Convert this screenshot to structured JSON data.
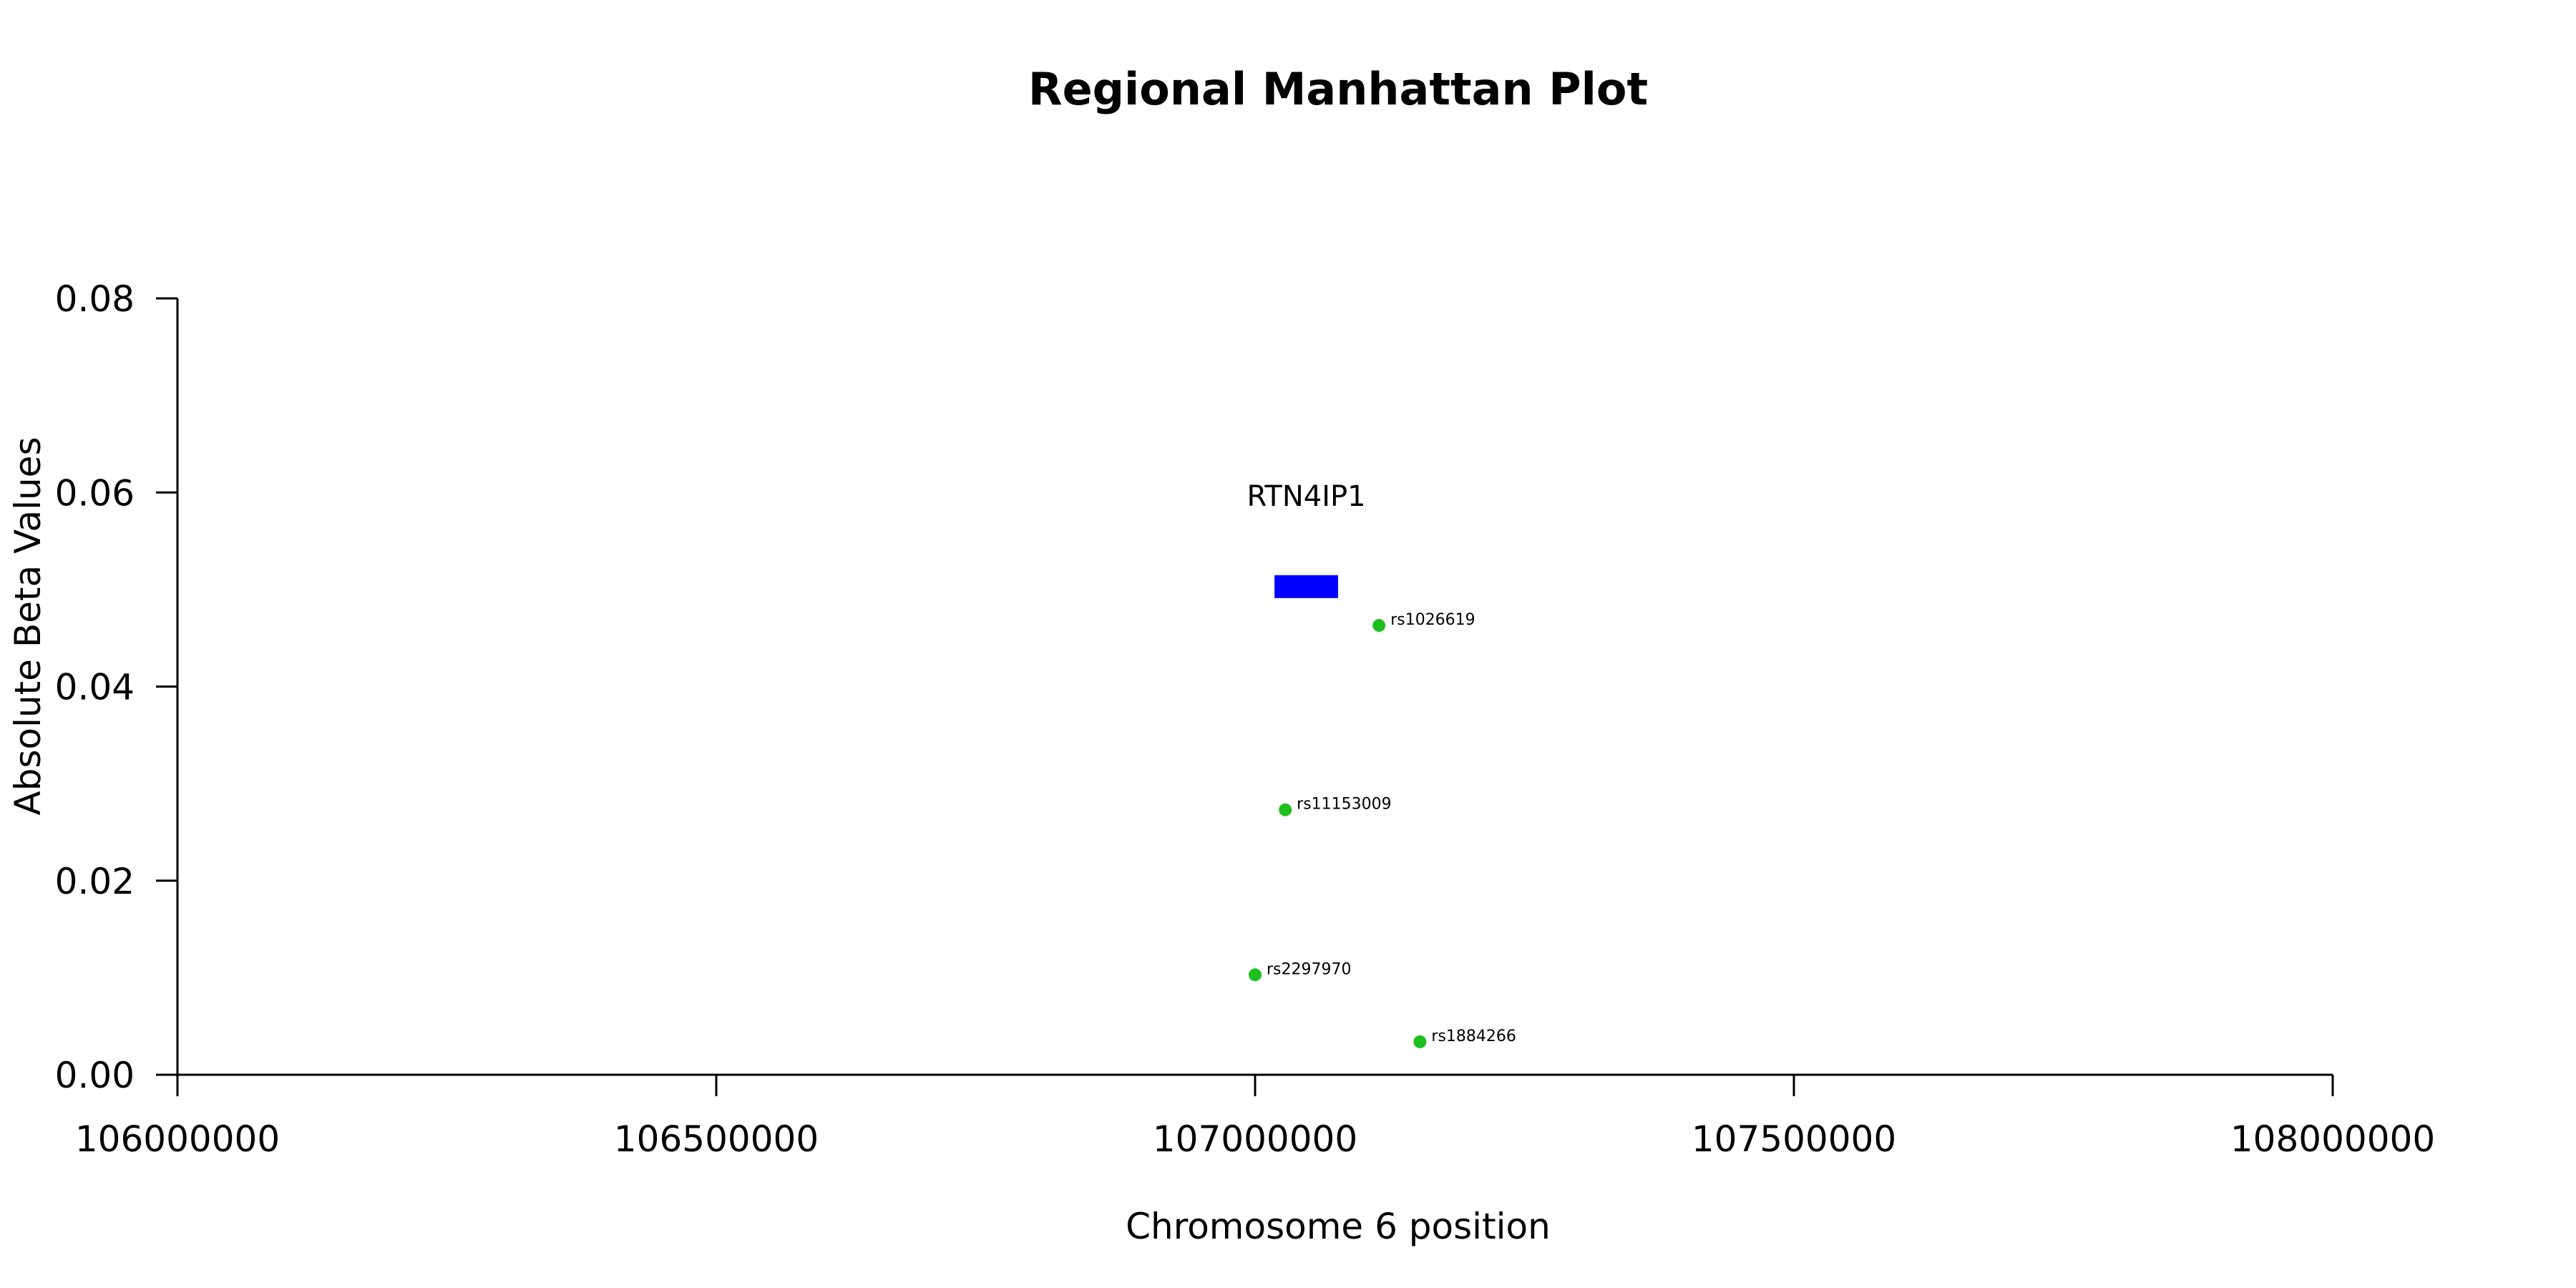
{
  "chart_data": {
    "type": "scatter",
    "title": "Regional Manhattan Plot",
    "xlabel": "Chromosome 6 position",
    "ylabel": "Absolute Beta Values",
    "xlim": [
      106000000,
      108000000
    ],
    "ylim": [
      0,
      0.08
    ],
    "x_ticks": [
      106000000,
      106500000,
      107000000,
      107500000,
      108000000
    ],
    "x_tick_labels": [
      "106000000",
      "106500000",
      "107000000",
      "107500000",
      "108000000"
    ],
    "y_ticks": [
      0,
      0.02,
      0.04,
      0.06,
      0.08
    ],
    "y_tick_labels": [
      "0.00",
      "0.02",
      "0.04",
      "0.06",
      "0.08"
    ],
    "grid": false,
    "point_color": "#1fbf1f",
    "points": [
      {
        "label": "rs1026619",
        "x": 107115000,
        "y": 0.0463
      },
      {
        "label": "rs11153009",
        "x": 107028000,
        "y": 0.0273
      },
      {
        "label": "rs2297970",
        "x": 107000000,
        "y": 0.0103
      },
      {
        "label": "rs1884266",
        "x": 107153000,
        "y": 0.0034
      }
    ],
    "genes": [
      {
        "name": "RTN4IP1",
        "start": 107018000,
        "end": 107077000,
        "y": 0.0503,
        "color": "#0000ff"
      }
    ]
  }
}
